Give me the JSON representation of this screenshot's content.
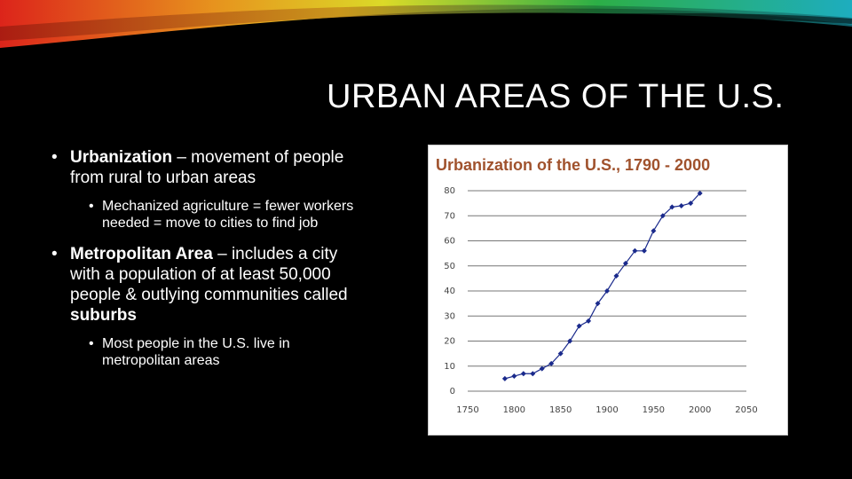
{
  "slide": {
    "title": "URBAN AREAS OF THE U.S.",
    "bullets": [
      {
        "bold": "Urbanization",
        "text": " – movement of people from rural to urban areas",
        "sub": "Mechanized agriculture = fewer workers needed = move to cities to find job"
      },
      {
        "bold": "Metropolitan Area",
        "text": " – includes a city with a population of at least 50,000 people & outlying communities called ",
        "bold2": "suburbs",
        "sub": "Most people in the U.S. live in metropolitan areas"
      }
    ]
  },
  "colors": {
    "background": "#000000",
    "chart_title": "#a0522d",
    "series": "#1a2a8c"
  },
  "chart_data": {
    "type": "line",
    "title": "Urbanization of the U.S., 1790 - 2000",
    "xlabel": "",
    "ylabel": "",
    "xlim": [
      1750,
      2050
    ],
    "ylim": [
      0,
      80
    ],
    "xticks": [
      "1750",
      "1800",
      "1850",
      "1900",
      "1950",
      "2000",
      "2050"
    ],
    "yticks": [
      "0",
      "10",
      "20",
      "30",
      "40",
      "50",
      "60",
      "70",
      "80"
    ],
    "grid": true,
    "series": [
      {
        "x": [
          1790,
          1800,
          1810,
          1820,
          1830,
          1840,
          1850,
          1860,
          1870,
          1880,
          1890,
          1900,
          1910,
          1920,
          1930,
          1940,
          1950,
          1960,
          1970,
          1980,
          1990,
          2000
        ],
        "y": [
          5,
          6,
          7,
          7,
          9,
          11,
          15,
          20,
          26,
          28,
          35,
          40,
          46,
          51,
          56,
          56,
          64,
          70,
          73.5,
          74,
          75,
          79
        ]
      }
    ]
  }
}
